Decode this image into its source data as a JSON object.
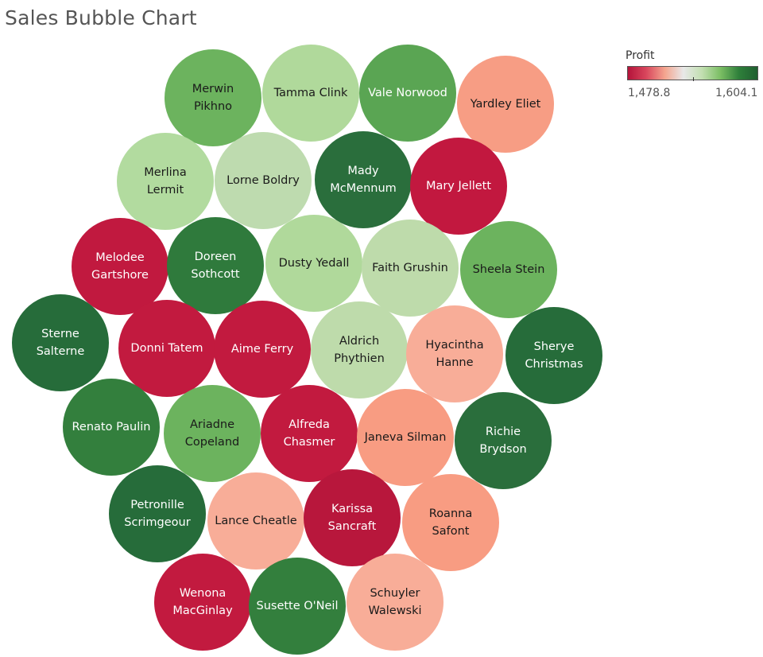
{
  "title": "Sales Bubble Chart",
  "legend": {
    "title": "Profit",
    "min_label": "1,478.8",
    "max_label": "1,604.1",
    "colors": [
      "#b4133a",
      "#d9475d",
      "#f4a58f",
      "#e8e8e8",
      "#c2dfb1",
      "#7bbe64",
      "#2e7f3a",
      "#1f5f30"
    ]
  },
  "chart_data": {
    "type": "bubble",
    "title": "Sales Bubble Chart",
    "color_measure": "Profit",
    "color_range": [
      1478.8,
      1604.1
    ],
    "color_palette": "red-green diverging",
    "bubbles": [
      {
        "label": [
          "Merwin",
          "Pikhno"
        ],
        "color": "#6cb35e",
        "text_color": "#1a1a1a"
      },
      {
        "label": [
          "Tamma Clink"
        ],
        "color": "#b0d99b",
        "text_color": "#1a1a1a"
      },
      {
        "label": [
          "Vale Norwood"
        ],
        "color": "#5aa553",
        "text_color": "#ffffff"
      },
      {
        "label": [
          "Yardley Eliet"
        ],
        "color": "#f79d84",
        "text_color": "#1a1a1a"
      },
      {
        "label": [
          "Merlina",
          "Lermit"
        ],
        "color": "#b2db9f",
        "text_color": "#1a1a1a"
      },
      {
        "label": [
          "Lorne Boldry"
        ],
        "color": "#bedbaf",
        "text_color": "#1a1a1a"
      },
      {
        "label": [
          "Mady",
          "McMennum"
        ],
        "color": "#2a6e3c",
        "text_color": "#ffffff"
      },
      {
        "label": [
          "Mary Jellett"
        ],
        "color": "#c2183f",
        "text_color": "#ffffff"
      },
      {
        "label": [
          "Melodee",
          "Gartshore"
        ],
        "color": "#c1193f",
        "text_color": "#ffffff"
      },
      {
        "label": [
          "Doreen",
          "Sothcott"
        ],
        "color": "#2f7a3c",
        "text_color": "#ffffff"
      },
      {
        "label": [
          "Dusty Yedall"
        ],
        "color": "#b0d99b",
        "text_color": "#1a1a1a"
      },
      {
        "label": [
          "Faith Grushin"
        ],
        "color": "#bedbab",
        "text_color": "#1a1a1a"
      },
      {
        "label": [
          "Sheela Stein"
        ],
        "color": "#6cb35e",
        "text_color": "#1a1a1a"
      },
      {
        "label": [
          "Sterne",
          "Salterne"
        ],
        "color": "#266c3a",
        "text_color": "#ffffff"
      },
      {
        "label": [
          "Donni Tatem"
        ],
        "color": "#c21a3f",
        "text_color": "#ffffff"
      },
      {
        "label": [
          "Aime Ferry"
        ],
        "color": "#c21a3f",
        "text_color": "#ffffff"
      },
      {
        "label": [
          "Aldrich",
          "Phythien"
        ],
        "color": "#bedbab",
        "text_color": "#1a1a1a"
      },
      {
        "label": [
          "Hyacintha",
          "Hanne"
        ],
        "color": "#f8ad98",
        "text_color": "#1a1a1a"
      },
      {
        "label": [
          "Sherye",
          "Christmas"
        ],
        "color": "#266c3a",
        "text_color": "#ffffff"
      },
      {
        "label": [
          "Renato Paulin"
        ],
        "color": "#337f3d",
        "text_color": "#ffffff"
      },
      {
        "label": [
          "Ariadne",
          "Copeland"
        ],
        "color": "#6cb35e",
        "text_color": "#1a1a1a"
      },
      {
        "label": [
          "Alfreda",
          "Chasmer"
        ],
        "color": "#c21a3f",
        "text_color": "#ffffff"
      },
      {
        "label": [
          "Janeva Silman"
        ],
        "color": "#f89c82",
        "text_color": "#1a1a1a"
      },
      {
        "label": [
          "Richie",
          "Brydson"
        ],
        "color": "#2a6e3c",
        "text_color": "#ffffff"
      },
      {
        "label": [
          "Petronille",
          "Scrimgeour"
        ],
        "color": "#266c3a",
        "text_color": "#ffffff"
      },
      {
        "label": [
          "Lance Cheatle"
        ],
        "color": "#f8ad98",
        "text_color": "#1a1a1a"
      },
      {
        "label": [
          "Karissa",
          "Sancraft"
        ],
        "color": "#b8173c",
        "text_color": "#ffffff"
      },
      {
        "label": [
          "Roanna",
          "Safont"
        ],
        "color": "#f89c82",
        "text_color": "#1a1a1a"
      },
      {
        "label": [
          "Wenona",
          "MacGinlay"
        ],
        "color": "#c21a3f",
        "text_color": "#ffffff"
      },
      {
        "label": [
          "Susette O'Neil"
        ],
        "color": "#337f3d",
        "text_color": "#ffffff"
      },
      {
        "label": [
          "Schuyler",
          "Walewski"
        ],
        "color": "#f8ad98",
        "text_color": "#1a1a1a"
      }
    ]
  }
}
